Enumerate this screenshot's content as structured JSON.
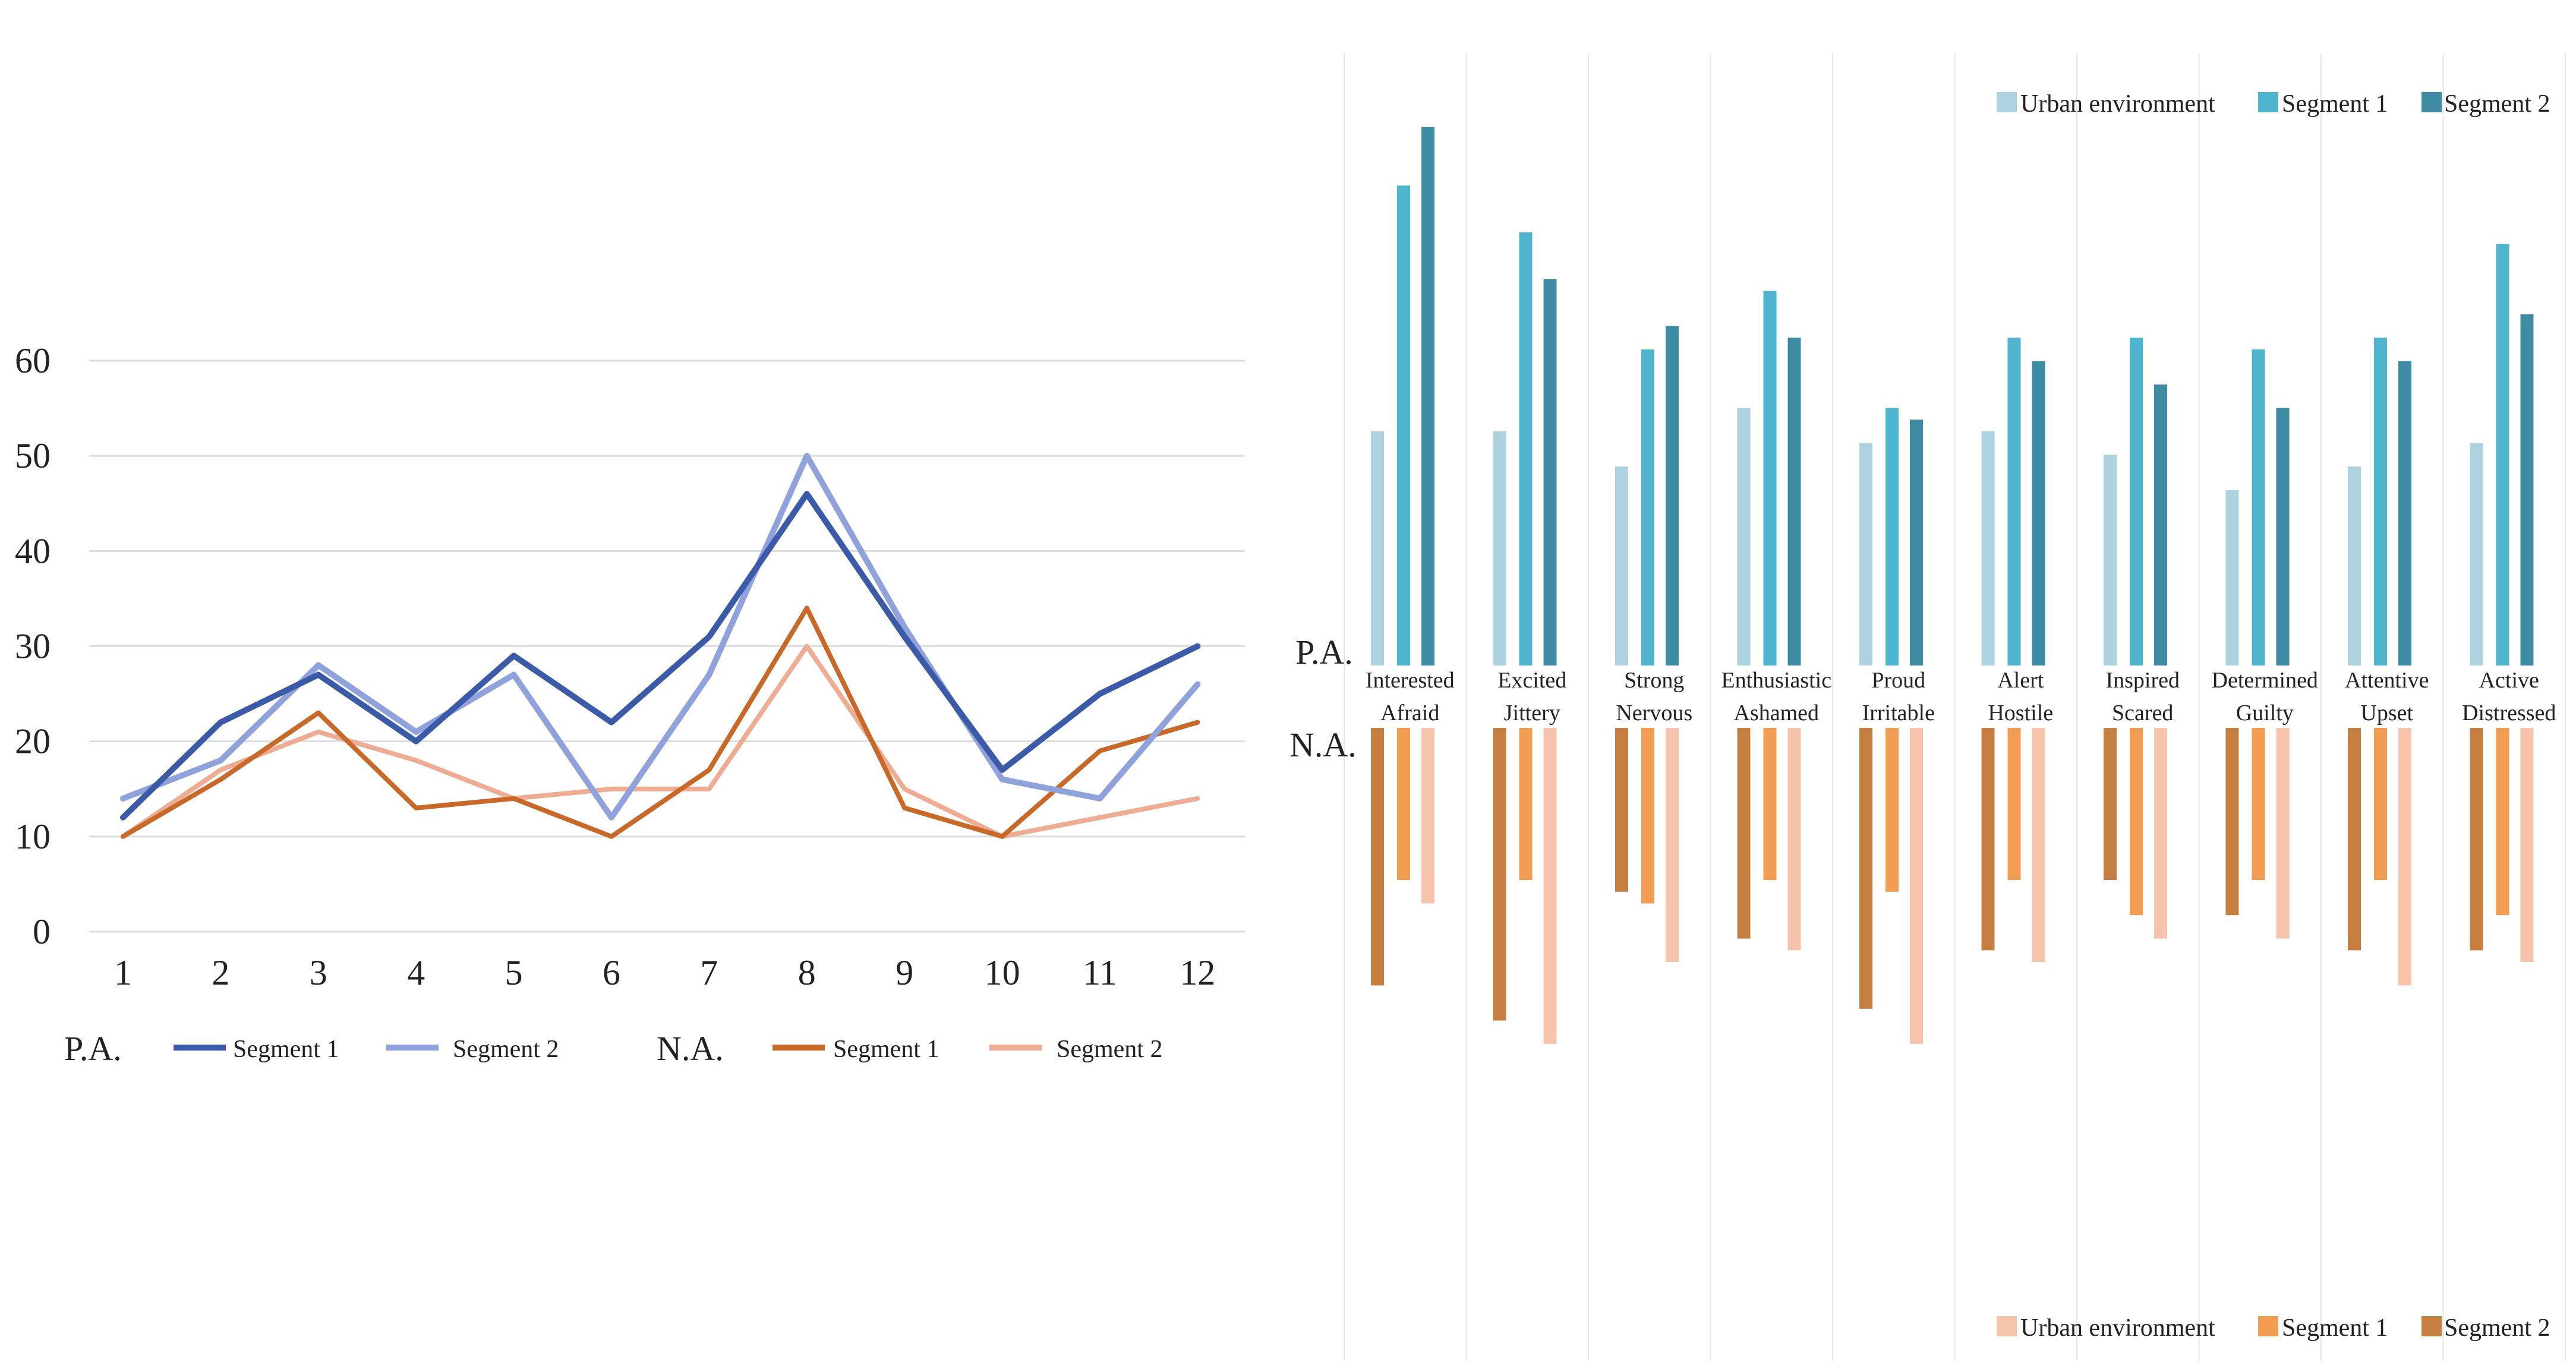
{
  "colors": {
    "pa_seg1": "#3b5aa8",
    "pa_seg2": "#8fa2dc",
    "na_seg1": "#c8692a",
    "na_seg2": "#eeac93",
    "pa_bar_urban": "#aed3e0",
    "pa_bar_seg1": "#4fb4cd",
    "pa_bar_seg2": "#3d8ca4",
    "na_bar_urban": "#f6c4ab",
    "na_bar_seg1": "#f39d53",
    "na_bar_seg2": "#c77f41",
    "grid": "#dddddd"
  },
  "line_legend": {
    "pa_label": "P.A.",
    "na_label": "N.A.",
    "seg1": "Segment 1",
    "seg2": "Segment 2"
  },
  "bar_legend": {
    "urban": "Urban environment",
    "seg1": "Segment 1",
    "seg2": "Segment 2"
  },
  "bar_axis_labels": {
    "pa": "P.A.",
    "na": "N.A."
  },
  "chart_data": [
    {
      "type": "line",
      "title": "",
      "xlabel": "",
      "ylabel": "",
      "x": [
        1,
        2,
        3,
        4,
        5,
        6,
        7,
        8,
        9,
        10,
        11,
        12
      ],
      "ylim": [
        0,
        60
      ],
      "yticks": [
        0,
        10,
        20,
        30,
        40,
        50,
        60
      ],
      "series": [
        {
          "name": "P.A. Segment 1",
          "values": [
            12,
            22,
            27,
            20,
            29,
            22,
            31,
            46,
            31,
            17,
            25,
            30
          ]
        },
        {
          "name": "P.A. Segment 2",
          "values": [
            14,
            18,
            28,
            21,
            27,
            12,
            27,
            50,
            32,
            16,
            14,
            26
          ]
        },
        {
          "name": "N.A. Segment 1",
          "values": [
            10,
            16,
            23,
            13,
            14,
            10,
            17,
            34,
            13,
            10,
            19,
            22
          ]
        },
        {
          "name": "N.A. Segment 2",
          "values": [
            10,
            17,
            21,
            18,
            14,
            15,
            15,
            30,
            15,
            10,
            12,
            14
          ]
        }
      ]
    },
    {
      "type": "bar",
      "title": "",
      "pa_categories": [
        "Interested",
        "Excited",
        "Strong",
        "Enthusiastic",
        "Proud",
        "Alert",
        "Inspired",
        "Determined",
        "Attentive",
        "Active"
      ],
      "na_categories": [
        "Afraid",
        "Jittery",
        "Nervous",
        "Ashamed",
        "Irritable",
        "Hostile",
        "Scared",
        "Guilty",
        "Upset",
        "Distressed"
      ],
      "pa_series": [
        {
          "name": "Urban environment",
          "values": [
            20,
            20,
            17,
            22,
            19,
            20,
            18,
            15,
            17,
            19
          ]
        },
        {
          "name": "Segment 1",
          "values": [
            41,
            37,
            27,
            32,
            22,
            28,
            28,
            27,
            28,
            36
          ]
        },
        {
          "name": "Segment 2",
          "values": [
            46,
            33,
            29,
            28,
            21,
            26,
            24,
            22,
            26,
            30
          ]
        }
      ],
      "na_series": [
        {
          "name": "Urban environment",
          "values": [
            15,
            27,
            20,
            19,
            27,
            20,
            18,
            18,
            22,
            20
          ]
        },
        {
          "name": "Segment 1",
          "values": [
            13,
            13,
            15,
            13,
            14,
            13,
            16,
            13,
            13,
            16
          ]
        },
        {
          "name": "Segment 2",
          "values": [
            22,
            25,
            14,
            18,
            24,
            19,
            13,
            16,
            19,
            19
          ]
        }
      ]
    }
  ]
}
